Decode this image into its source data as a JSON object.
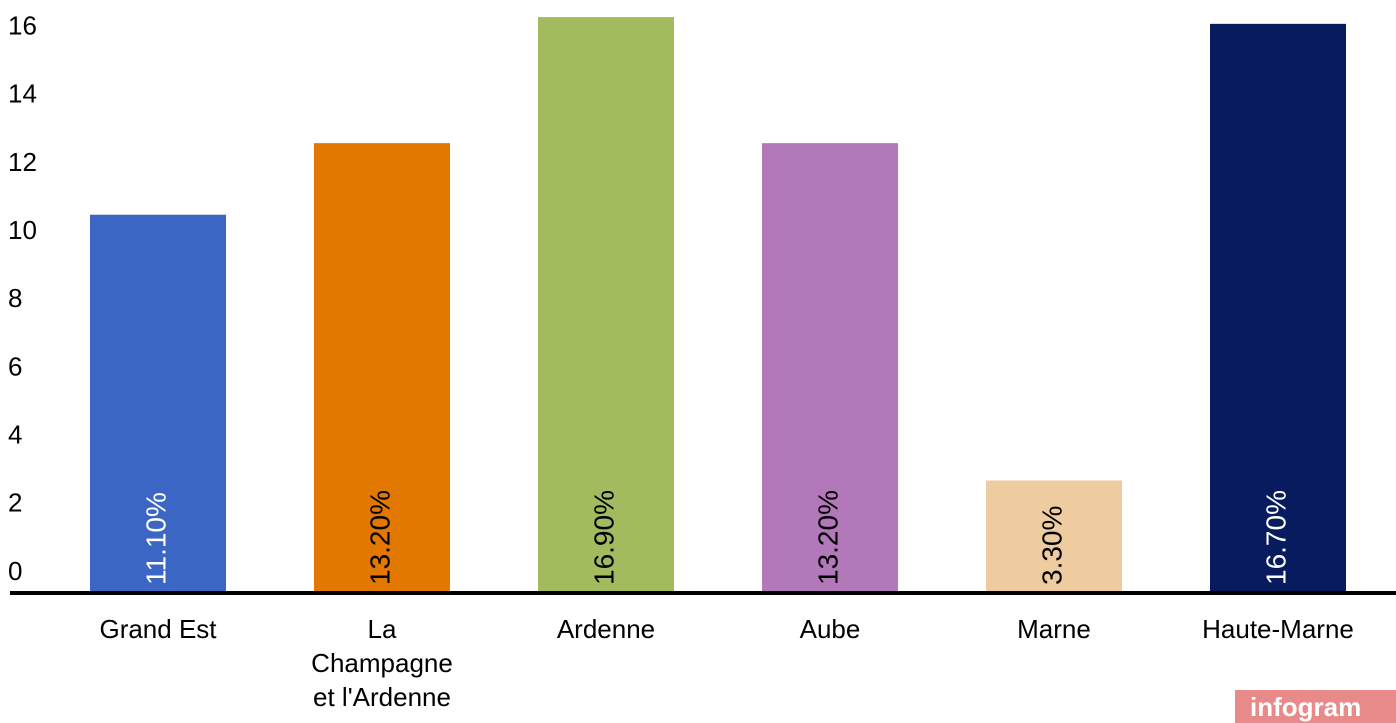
{
  "chart_data": {
    "type": "bar",
    "categories": [
      "Grand Est",
      "La Champagne et l'Ardenne",
      "Ardenne",
      "Aube",
      "Marne",
      "Haute-Marne"
    ],
    "values": [
      11.1,
      13.2,
      16.9,
      13.2,
      3.3,
      16.7
    ],
    "value_labels": [
      "11.10%",
      "13.20%",
      "16.90%",
      "13.20%",
      "3.30%",
      "16.70%"
    ],
    "colors": [
      "#3c66c4",
      "#e37800",
      "#a2bb5f",
      "#b378b9",
      "#eecca0",
      "#081b5e"
    ],
    "label_colors": [
      "#ffffff",
      "#000000",
      "#000000",
      "#000000",
      "#000000",
      "#ffffff"
    ],
    "ylim": [
      0,
      17.4
    ],
    "yticks": [
      0,
      2,
      4,
      6,
      8,
      10,
      12,
      14,
      16
    ],
    "grid": false,
    "watermark": "infogram"
  }
}
